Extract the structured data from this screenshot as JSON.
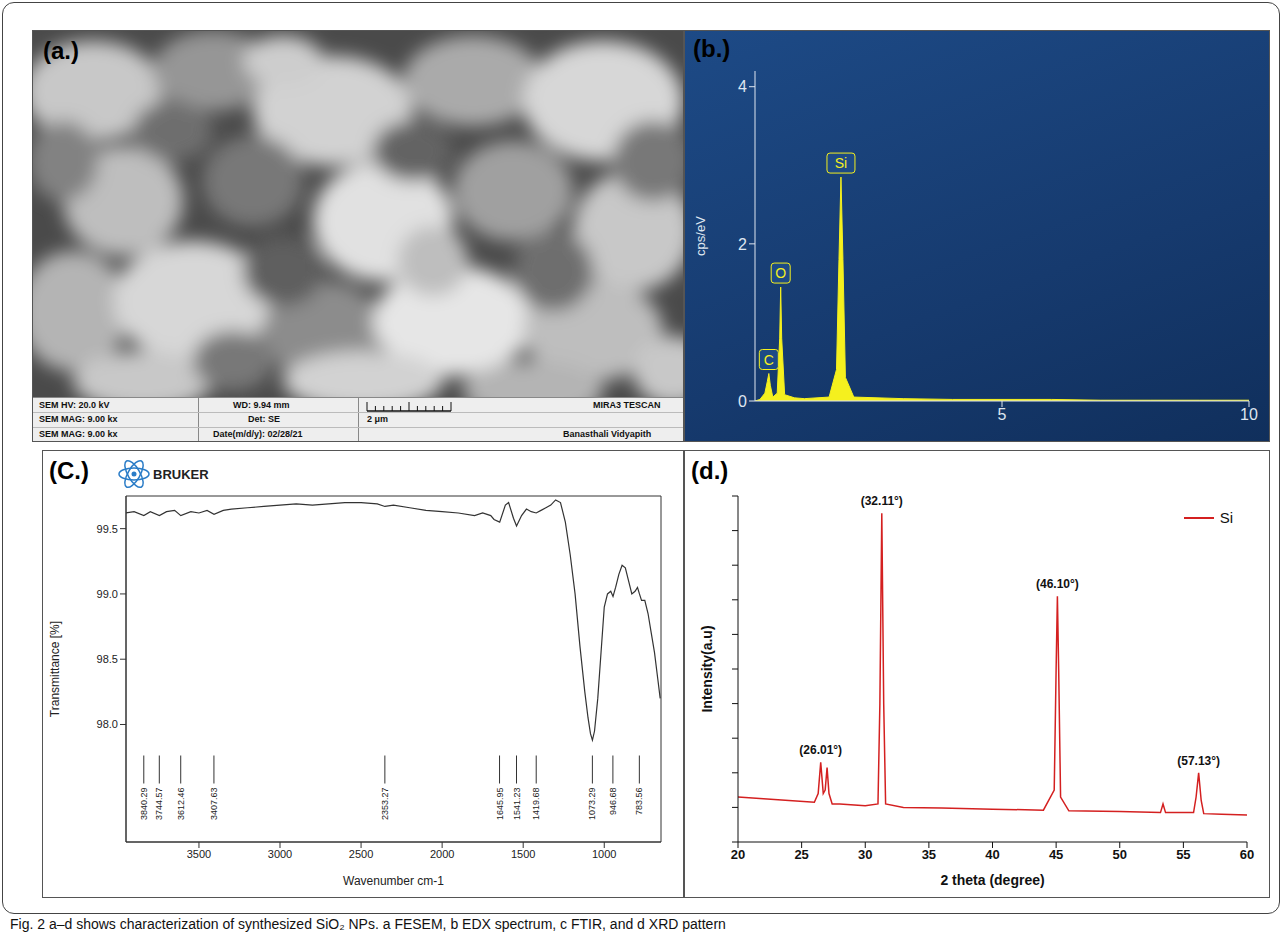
{
  "caption": "Fig. 2  a–d shows characterization of synthesized SiO₂ NPs. a FESEM, b EDX spectrum, c FTIR, and d XRD pattern",
  "sem_panel": {
    "panel_label": "(a.)",
    "info_bar": {
      "hv": "SEM HV: 20.0 kV",
      "mag1": "SEM MAG: 9.00 kx",
      "mag2": "SEM MAG: 9.00 kx",
      "wd": "WD: 9.94 mm",
      "det": "Det: SE",
      "date": "Date(m/d/y): 02/28/21",
      "scale": "2 μm",
      "instrument": "MIRA3 TESCAN",
      "lab": "Banasthali Vidyapith"
    }
  },
  "chart_data": [
    {
      "panel_label": "(b.)",
      "type": "area",
      "y_label": "cps/eV",
      "x": [
        0,
        0.1,
        0.2,
        0.25,
        0.28,
        0.31,
        0.36,
        0.45,
        0.5,
        0.52,
        0.54,
        0.6,
        0.8,
        1.0,
        1.5,
        1.65,
        1.7,
        1.74,
        1.78,
        1.83,
        2.0,
        3,
        4,
        5,
        6,
        7,
        8,
        9,
        10
      ],
      "values": [
        0,
        0.02,
        0.1,
        0.25,
        0.35,
        0.2,
        0.05,
        0.1,
        0.8,
        1.45,
        0.8,
        0.08,
        0.04,
        0.03,
        0.05,
        0.4,
        1.8,
        2.85,
        1.8,
        0.3,
        0.05,
        0.03,
        0.02,
        0.02,
        0.02,
        0.01,
        0.01,
        0.01,
        0.01
      ],
      "color": "#f5f01e",
      "xlim": [
        0,
        10
      ],
      "xticks": [
        5,
        10
      ],
      "ylim": [
        0,
        4.2
      ],
      "yticks": [
        0,
        2,
        4
      ],
      "annotations": [
        {
          "text": "C",
          "x": 0.28,
          "y": 0.35
        },
        {
          "text": "O",
          "x": 0.52,
          "y": 1.45
        },
        {
          "text": "Si",
          "x": 1.74,
          "y": 2.85
        }
      ]
    },
    {
      "panel_label": "(C.)",
      "logo": "BRUKER",
      "type": "line",
      "x_label": "Wavenumber cm-1",
      "y_label": "Transmittance [%]",
      "x": [
        3950,
        3900,
        3840,
        3800,
        3744,
        3700,
        3650,
        3612,
        3550,
        3500,
        3450,
        3407,
        3350,
        3300,
        3200,
        3100,
        3000,
        2900,
        2800,
        2700,
        2600,
        2500,
        2400,
        2353,
        2300,
        2200,
        2100,
        2000,
        1900,
        1800,
        1750,
        1700,
        1680,
        1645,
        1610,
        1590,
        1560,
        1541,
        1510,
        1480,
        1450,
        1420,
        1390,
        1360,
        1330,
        1300,
        1270,
        1240,
        1210,
        1180,
        1150,
        1120,
        1100,
        1085,
        1073,
        1060,
        1040,
        1020,
        1000,
        980,
        960,
        946,
        930,
        910,
        890,
        870,
        850,
        830,
        810,
        795,
        783,
        770,
        750,
        730,
        710,
        690,
        670,
        655
      ],
      "values": [
        99.62,
        99.63,
        99.6,
        99.63,
        99.6,
        99.63,
        99.64,
        99.6,
        99.63,
        99.62,
        99.64,
        99.61,
        99.64,
        99.65,
        99.66,
        99.67,
        99.68,
        99.69,
        99.68,
        99.69,
        99.7,
        99.7,
        99.69,
        99.67,
        99.68,
        99.66,
        99.64,
        99.63,
        99.62,
        99.6,
        99.62,
        99.6,
        99.57,
        99.55,
        99.68,
        99.7,
        99.58,
        99.52,
        99.6,
        99.65,
        99.63,
        99.62,
        99.64,
        99.66,
        99.68,
        99.72,
        99.7,
        99.55,
        99.3,
        99.0,
        98.6,
        98.25,
        98.05,
        97.93,
        97.88,
        97.95,
        98.2,
        98.55,
        98.9,
        99.0,
        99.02,
        98.98,
        99.05,
        99.15,
        99.22,
        99.2,
        99.1,
        99.0,
        99.02,
        99.05,
        99.0,
        98.95,
        98.95,
        98.85,
        98.7,
        98.55,
        98.35,
        98.2
      ],
      "color": "#333333",
      "xlim": [
        3950,
        650
      ],
      "xticks": [
        3500,
        3000,
        2500,
        2000,
        1500,
        1000
      ],
      "ylim": [
        97.1,
        99.75
      ],
      "yticks": [
        {
          "value": 98,
          "label": "98.0"
        },
        98.5,
        {
          "value": 99,
          "label": "99.0"
        },
        99.5
      ],
      "peaks": [
        3840.29,
        3744.57,
        3612.46,
        3407.63,
        2353.27,
        1645.95,
        1541.23,
        1419.68,
        1073.29,
        946.68,
        783.56
      ]
    },
    {
      "panel_label": "(d.)",
      "type": "line",
      "x_label": "2 theta (degree)",
      "y_label": "Intensity(a.u)",
      "x": [
        20,
        22,
        24,
        26,
        26.3,
        26.5,
        26.7,
        26.85,
        27.0,
        27.15,
        27.4,
        28,
        30,
        31.0,
        31.15,
        31.3,
        31.45,
        31.6,
        33,
        36,
        40,
        44,
        44.85,
        45.0,
        45.1,
        45.2,
        45.35,
        46,
        50,
        53.2,
        53.4,
        53.6,
        55.8,
        56.0,
        56.2,
        56.4,
        56.6,
        58,
        60
      ],
      "series": [
        {
          "name": "Si",
          "color": "#d42020",
          "values": [
            1.3,
            1.25,
            1.2,
            1.15,
            1.4,
            2.3,
            1.4,
            1.5,
            2.15,
            1.4,
            1.1,
            1.1,
            1.05,
            1.1,
            4,
            9.5,
            4,
            1.1,
            1.0,
            0.98,
            0.95,
            0.92,
            1.5,
            5,
            7.1,
            5,
            1.3,
            0.9,
            0.88,
            0.85,
            1.1,
            0.85,
            0.85,
            1.3,
            2.0,
            1.2,
            0.82,
            0.8,
            0.78
          ]
        }
      ],
      "xlim": [
        20,
        60
      ],
      "xticks": [
        20,
        25,
        30,
        35,
        40,
        45,
        50,
        55,
        60
      ],
      "ylim": [
        0,
        10
      ],
      "yticks": [
        0,
        1,
        2,
        3,
        4,
        5,
        6,
        7,
        8,
        9,
        10
      ],
      "tick_labels": "x",
      "legend": "upper right",
      "annotations": [
        {
          "text": "(26.01°)",
          "x": 26.5,
          "y": 2.3
        },
        {
          "text": "(32.11°)",
          "x": 31.3,
          "y": 9.5
        },
        {
          "text": "(46.10°)",
          "x": 45.1,
          "y": 7.1
        },
        {
          "text": "(57.13°)",
          "x": 56.2,
          "y": 2.0
        }
      ]
    }
  ]
}
